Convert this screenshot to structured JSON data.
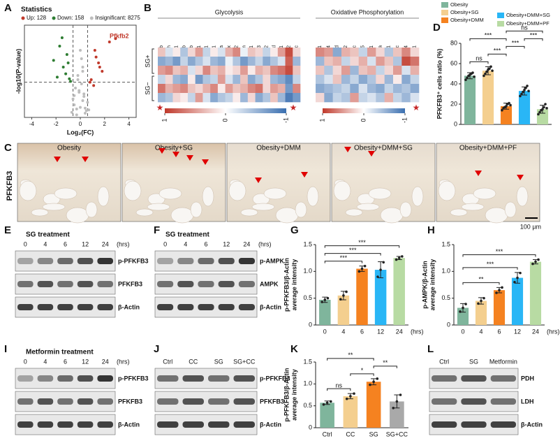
{
  "chart_data": [
    {
      "type": "scatter",
      "title": "Statistics",
      "xlabel": "Log₂(FC)",
      "ylabel": "-log10(P-value)",
      "xlim": [
        -4.6,
        4.6
      ],
      "xticks": [
        -4,
        -2,
        0,
        2,
        4
      ],
      "ylim": [
        0,
        11
      ],
      "vlines": [
        -0.6,
        0.6
      ],
      "hline": 4.2,
      "annotation": "Pfkfb2",
      "series": [
        {
          "name": "Up: 128",
          "color": "#c0392b",
          "x": [
            1.2,
            1.5,
            0.9,
            1.8,
            2.4,
            1.1,
            1.3,
            0.8,
            1.6,
            2.9
          ],
          "values": [
            8,
            6.5,
            4.5,
            5.5,
            9,
            3.8,
            7.2,
            4.2,
            6,
            9.4
          ]
        },
        {
          "name": "Down: 158",
          "color": "#2e7d32",
          "x": [
            -1.1,
            -1.4,
            -0.9,
            -1.7,
            -2.2,
            -1.2,
            -0.8,
            -1.5,
            -1.0,
            -1.9
          ],
          "values": [
            7.5,
            6,
            4.6,
            8.5,
            6.8,
            5.2,
            4.3,
            9.5,
            6.5,
            4.8
          ]
        },
        {
          "name": "Insignificant: 8275",
          "color": "#bdbdbd",
          "x": [
            -0.3,
            0.2,
            -0.1,
            0.4,
            -0.5,
            0.1,
            0.3,
            -0.2,
            0.0,
            -0.4,
            0.5,
            -0.6,
            0.6,
            0.2,
            -0.3,
            0.1,
            -0.1,
            0.3,
            -0.2,
            0.4,
            -0.7,
            0.7,
            0.0,
            -0.5,
            0.2
          ],
          "values": [
            1,
            2,
            3,
            0.5,
            1.5,
            4,
            2.5,
            5,
            1.2,
            3.5,
            0.8,
            2.2,
            1.8,
            6,
            0.3,
            7,
            3.2,
            2.8,
            4.5,
            1.1,
            0.6,
            0.9,
            8,
            2.6,
            5.5
          ]
        }
      ]
    },
    {
      "type": "heatmap",
      "row_groups": [
        "SG+",
        "SG−"
      ],
      "clim": [
        -1,
        1
      ],
      "cticks": [
        1,
        0,
        -1
      ],
      "panels": [
        {
          "title": "Glycolysis",
          "genes": [
            "Aldob",
            "Gapdh",
            "Eno1",
            "Pdhb",
            "Ldhb",
            "Pck1",
            "Pdha1",
            "Pgk1",
            "Ldha",
            "Pdhx",
            "Pgam2",
            "Pkm",
            "Hk1",
            "Hk3",
            "Hk2",
            "Pfkl",
            "Pgam1",
            "Pfkfb2",
            "Aldoc"
          ],
          "values": [
            [
              0.3,
              -0.2,
              0.1,
              -0.4,
              0.2,
              0.5,
              -0.3,
              0.1,
              -0.2,
              0.4,
              0.6,
              -0.1,
              0.3,
              0.2,
              -0.3,
              0.1,
              0.5,
              0.9,
              0.2
            ],
            [
              -0.6,
              -0.5,
              -0.7,
              -0.3,
              -0.6,
              -0.4,
              -0.2,
              -0.5,
              -0.6,
              -0.1,
              -0.4,
              -0.7,
              -0.5,
              -0.3,
              -0.6,
              -0.4,
              -0.2,
              0.8,
              -0.5
            ],
            [
              0.5,
              0.6,
              0.3,
              0.4,
              -0.2,
              0.2,
              0.6,
              0.3,
              0.4,
              0.1,
              0.2,
              0.5,
              0.1,
              0.4,
              0.3,
              0.6,
              0.7,
              0.9,
              0.3
            ],
            [
              -0.3,
              0.2,
              -0.5,
              -0.6,
              0.1,
              -0.7,
              -0.4,
              -0.3,
              0.5,
              -0.2,
              -0.5,
              0.3,
              -0.6,
              -0.4,
              0.2,
              -0.5,
              -0.6,
              -0.8,
              -0.3
            ],
            [
              0.7,
              0.4,
              0.5,
              0.6,
              0.3,
              0.2,
              0.4,
              0.6,
              0.1,
              0.5,
              0.3,
              0.4,
              0.6,
              0.7,
              0.2,
              0.5,
              0.4,
              -0.7,
              0.6
            ],
            [
              -0.5,
              -0.4,
              0.2,
              0.1,
              -0.3,
              0.5,
              -0.2,
              -0.6,
              -0.4,
              -0.3,
              0.1,
              -0.5,
              0.2,
              -0.6,
              -0.4,
              0.3,
              -0.5,
              -0.9,
              -0.7
            ]
          ]
        },
        {
          "title": "Oxidative Phosphorylation",
          "genes": [
            "Fdx1",
            "Ndufa4",
            "Atp5f1d",
            "Tomm22",
            "Cox7c",
            "Cox15",
            "Atp6v0d1",
            "Cpt1a",
            "Atp6v1c1",
            "Atp6v0c",
            "Pdk4",
            "Ndufb11"
          ],
          "values": [
            [
              0.6,
              0.5,
              -0.6,
              0.4,
              0.3,
              -0.3,
              0.5,
              0.2,
              -0.4,
              0.3,
              0.6,
              0.2
            ],
            [
              -0.5,
              0.3,
              0.4,
              -0.3,
              0.2,
              0.4,
              -0.2,
              0.5,
              0.3,
              -0.4,
              0.9,
              0.7
            ],
            [
              0.3,
              -0.4,
              0.2,
              0.5,
              -0.5,
              0.3,
              0.4,
              -0.3,
              0.2,
              0.5,
              -0.2,
              0.4
            ],
            [
              -0.4,
              -0.2,
              0.3,
              -0.5,
              -0.3,
              -0.6,
              -0.4,
              0.2,
              -0.5,
              0.1,
              -0.6,
              -0.3
            ],
            [
              -0.6,
              -0.5,
              -0.4,
              -0.3,
              -0.6,
              -0.2,
              -0.5,
              -0.6,
              -0.3,
              -0.5,
              -0.4,
              -0.6
            ],
            [
              0.2,
              -0.6,
              -0.3,
              -0.4,
              0.5,
              -0.3,
              -0.2,
              -0.4,
              0.4,
              -0.3,
              -0.5,
              -0.2
            ]
          ]
        }
      ]
    },
    {
      "type": "bar",
      "legend": true,
      "ylabel": [
        "PFKFB3⁺ cells ratio (%)"
      ],
      "categories": [
        "Obesity",
        "Obesity+SG",
        "Obesity+DMM",
        "Obesity+DMM+SG",
        "Obesity+DMM+PF"
      ],
      "colors": [
        "#7fb59c",
        "#f4cf8f",
        "#f58220",
        "#29b6f6",
        "#b8dba3"
      ],
      "values": [
        48,
        53,
        18,
        33,
        15
      ],
      "errors": [
        3,
        4,
        3,
        4,
        4
      ],
      "points": [
        [
          44,
          46,
          48,
          49,
          50,
          51,
          47
        ],
        [
          48,
          50,
          52,
          54,
          55,
          57,
          53
        ],
        [
          14,
          16,
          17,
          18,
          20,
          21,
          19
        ],
        [
          28,
          30,
          32,
          34,
          36,
          38,
          33
        ],
        [
          10,
          12,
          14,
          15,
          17,
          20,
          16
        ]
      ],
      "ylim": [
        0,
        80
      ],
      "yticks": [
        0,
        20,
        40,
        60,
        80
      ],
      "brackets": [
        {
          "from": "Obesity",
          "to": "Obesity+SG",
          "label": "ns"
        },
        {
          "from": "Obesity+SG",
          "to": "Obesity+DMM",
          "label": "***"
        },
        {
          "from": "Obesity+DMM",
          "to": "Obesity+DMM+SG",
          "label": "***"
        },
        {
          "from": "Obesity+DMM+SG",
          "to": "Obesity+DMM+PF",
          "label": "***"
        },
        {
          "from": "Obesity",
          "to": "Obesity+DMM",
          "label": "***"
        },
        {
          "from": "Obesity+DMM",
          "to": "Obesity+DMM+PF",
          "label": "ns"
        }
      ]
    },
    {
      "type": "bar",
      "ylabel": [
        "p-PFKFB3/β-Actin",
        "average intensity"
      ],
      "xlabel": "(hrs)",
      "categories": [
        "0",
        "4",
        "6",
        "12",
        "24"
      ],
      "colors": [
        "#7fb59c",
        "#f4cf8f",
        "#f58220",
        "#29b6f6",
        "#b8dba3"
      ],
      "values": [
        0.47,
        0.55,
        1.05,
        1.03,
        1.25
      ],
      "errors": [
        0.05,
        0.08,
        0.05,
        0.15,
        0.03
      ],
      "points": [
        [
          0.43,
          0.47,
          0.5
        ],
        [
          0.48,
          0.55,
          0.62
        ],
        [
          1.0,
          1.05,
          1.1
        ],
        [
          0.9,
          1.03,
          1.17
        ],
        [
          1.22,
          1.25,
          1.28
        ]
      ],
      "ylim": [
        0,
        1.5
      ],
      "yticks": [
        0,
        0.5,
        {
          "value": 1.0,
          "label": "1.0"
        },
        1.5
      ],
      "brackets": [
        {
          "from": "0",
          "to": "6",
          "label": "***"
        },
        {
          "from": "0",
          "to": "12",
          "label": "***"
        },
        {
          "from": "0",
          "to": "24",
          "label": "***"
        }
      ]
    },
    {
      "type": "bar",
      "ylabel": [
        "p-AMPK/β-Actin",
        "average intensity"
      ],
      "xlabel": "(hrs)",
      "categories": [
        "0",
        "4",
        "6",
        "12",
        "24"
      ],
      "colors": [
        "#7fb59c",
        "#f4cf8f",
        "#f58220",
        "#29b6f6",
        "#b8dba3"
      ],
      "values": [
        0.32,
        0.45,
        0.65,
        0.88,
        1.18
      ],
      "errors": [
        0.08,
        0.06,
        0.05,
        0.1,
        0.04
      ],
      "points": [
        [
          0.25,
          0.32,
          0.39
        ],
        [
          0.4,
          0.45,
          0.5
        ],
        [
          0.6,
          0.65,
          0.7
        ],
        [
          0.8,
          0.88,
          0.97
        ],
        [
          1.14,
          1.18,
          1.22
        ]
      ],
      "ylim": [
        0,
        1.5
      ],
      "yticks": [
        0,
        0.5,
        {
          "value": 1.0,
          "label": "1.0"
        },
        1.5
      ],
      "brackets": [
        {
          "from": "0",
          "to": "6",
          "label": "**"
        },
        {
          "from": "0",
          "to": "12",
          "label": "***"
        },
        {
          "from": "0",
          "to": "24",
          "label": "***"
        }
      ]
    },
    {
      "type": "bar",
      "ylabel": [
        "p-PFKFB3/β-Actin",
        "average intensity"
      ],
      "categories": [
        "Ctrl",
        "CC",
        "SG",
        "SG+CC"
      ],
      "colors": [
        "#7fb59c",
        "#f4cf8f",
        "#f58220",
        "#a9a9a9"
      ],
      "values": [
        0.57,
        0.72,
        1.05,
        0.6
      ],
      "errors": [
        0.04,
        0.06,
        0.07,
        0.15
      ],
      "points": [
        [
          0.53,
          0.57,
          0.6
        ],
        [
          0.66,
          0.72,
          0.78
        ],
        [
          0.98,
          1.05,
          1.12
        ],
        [
          0.45,
          0.6,
          0.75
        ]
      ],
      "ylim": [
        0,
        1.5
      ],
      "yticks": [
        0,
        0.5,
        {
          "value": 1.0,
          "label": "1.0"
        },
        1.5
      ],
      "brackets": [
        {
          "from": "Ctrl",
          "to": "CC",
          "label": "ns"
        },
        {
          "from": "CC",
          "to": "SG",
          "label": "*"
        },
        {
          "from": "SG",
          "to": "SG+CC",
          "label": "**"
        },
        {
          "from": "Ctrl",
          "to": "SG",
          "label": "**"
        }
      ]
    }
  ],
  "figure": {
    "letters": [
      "A",
      "B",
      "C",
      "D",
      "E",
      "F",
      "G",
      "H",
      "I",
      "J",
      "K",
      "L"
    ],
    "histology": {
      "ylabel": "PFKFB3",
      "titles": [
        "Obesity",
        "Obesity+SG",
        "Obesity+DMM",
        "Obesity+DMM+SG",
        "Obesity+DMM+PF"
      ],
      "scale": "100 µm"
    },
    "blots": [
      {
        "title": "SG treatment",
        "lanes": [
          "0",
          "4",
          "6",
          "12",
          "24"
        ],
        "unit": "(hrs)",
        "rows": [
          "p-PFKFB3",
          "PFKFB3",
          "β-Actin"
        ]
      },
      {
        "title": "SG treatment",
        "lanes": [
          "0",
          "4",
          "6",
          "12",
          "24"
        ],
        "unit": "(hrs)",
        "rows": [
          "p-AMPK",
          "AMPK",
          "β-Actin"
        ]
      },
      {
        "title": "Metformin treatment",
        "lanes": [
          "0",
          "4",
          "6",
          "12",
          "24"
        ],
        "unit": "(hrs)",
        "rows": [
          "p-PFKFB3",
          "PFKFB3",
          "β-Actin"
        ]
      },
      {
        "lanes": [
          "Ctrl",
          "CC",
          "SG",
          "SG+CC"
        ],
        "rows": [
          "p-PFKFB3",
          "PFKFB3",
          "β-Actin"
        ]
      },
      {
        "lanes": [
          "Ctrl",
          "SG",
          "Metformin"
        ],
        "rows": [
          "PDH",
          "LDH",
          "β-Actin"
        ]
      }
    ]
  }
}
